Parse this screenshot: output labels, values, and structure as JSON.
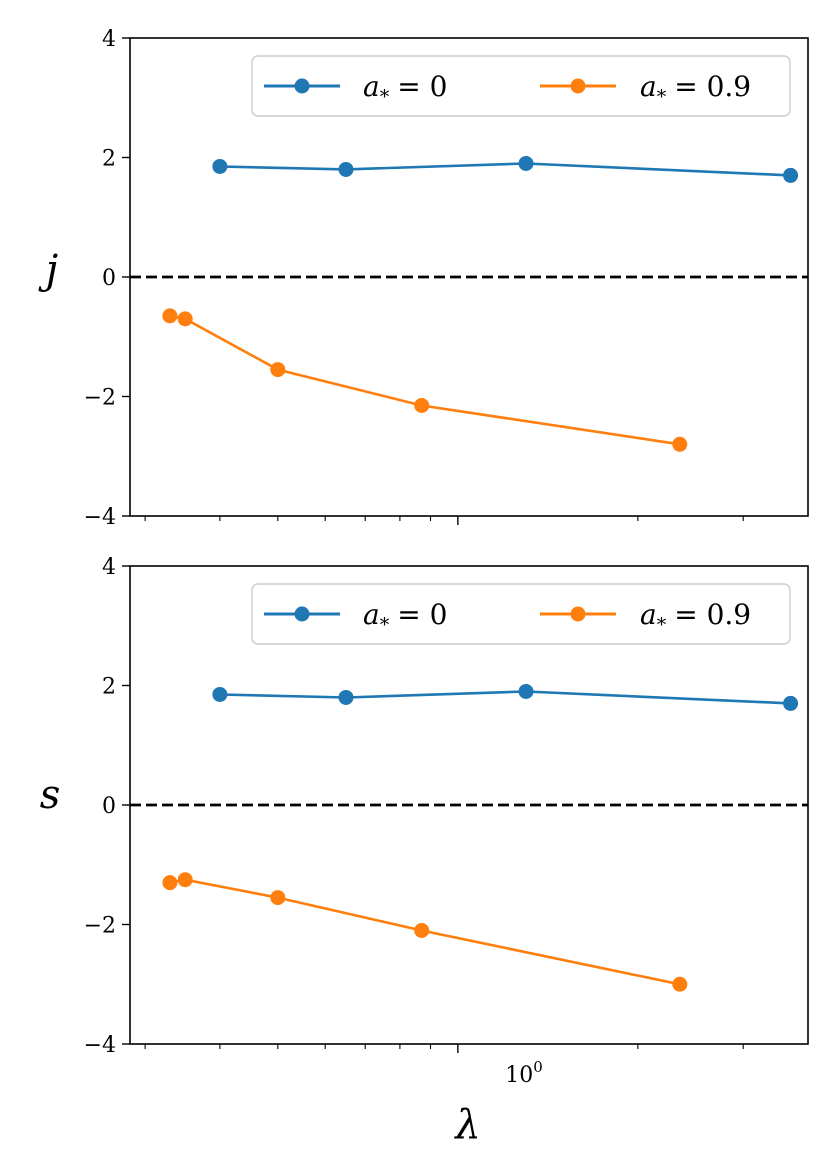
{
  "colors": {
    "blue": "#1f77b4",
    "orange": "#ff7f0e",
    "zero_line": "#000000"
  },
  "xlabel": "λ",
  "x_major_tick": {
    "value": 1,
    "label_base": "10",
    "label_exp": "0"
  },
  "chart_data": [
    {
      "type": "line",
      "ylabel": "j",
      "ylim": [
        -4,
        4
      ],
      "yticks": [
        -4,
        -2,
        0,
        2,
        4
      ],
      "ytick_labels": [
        "−4",
        "−2",
        "0",
        "2",
        "4"
      ],
      "xscale": "log",
      "xlim": [
        0.283,
        3.85
      ],
      "reference_line": {
        "y": 0,
        "style": "dashed"
      },
      "legend_position": "top-right",
      "series": [
        {
          "name": "a* = 0",
          "legend_sym": "a",
          "legend_sub": "*",
          "legend_rhs": "= 0",
          "color": "#1f77b4",
          "x": [
            0.4,
            0.65,
            1.3,
            3.6
          ],
          "y": [
            1.85,
            1.8,
            1.9,
            1.7
          ]
        },
        {
          "name": "a* = 0.9",
          "legend_sym": "a",
          "legend_sub": "*",
          "legend_rhs": "= 0.9",
          "color": "#ff7f0e",
          "x": [
            0.33,
            0.35,
            0.5,
            0.87,
            2.35
          ],
          "y": [
            -0.65,
            -0.7,
            -1.55,
            -2.15,
            -2.8
          ]
        }
      ]
    },
    {
      "type": "line",
      "ylabel": "s",
      "ylim": [
        -4,
        4
      ],
      "yticks": [
        -4,
        -2,
        0,
        2,
        4
      ],
      "ytick_labels": [
        "−4",
        "−2",
        "0",
        "2",
        "4"
      ],
      "xscale": "log",
      "xlim": [
        0.283,
        3.85
      ],
      "reference_line": {
        "y": 0,
        "style": "dashed"
      },
      "legend_position": "top-right",
      "series": [
        {
          "name": "a* = 0",
          "legend_sym": "a",
          "legend_sub": "*",
          "legend_rhs": "= 0",
          "color": "#1f77b4",
          "x": [
            0.4,
            0.65,
            1.3,
            3.6
          ],
          "y": [
            1.85,
            1.8,
            1.9,
            1.7
          ]
        },
        {
          "name": "a* = 0.9",
          "legend_sym": "a",
          "legend_sub": "*",
          "legend_rhs": "= 0.9",
          "color": "#ff7f0e",
          "x": [
            0.33,
            0.35,
            0.5,
            0.87,
            2.35
          ],
          "y": [
            -1.3,
            -1.25,
            -1.55,
            -2.1,
            -3.0
          ]
        }
      ]
    }
  ]
}
